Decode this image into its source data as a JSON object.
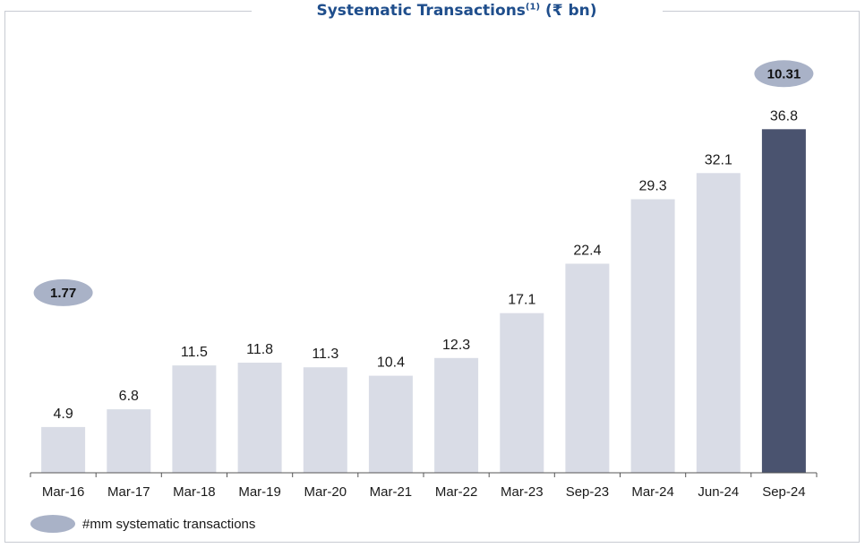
{
  "chart_data": {
    "type": "bar",
    "title": "Systematic Transactions",
    "title_superscript": "(1)",
    "title_unit": "(₹ bn)",
    "categories": [
      "Mar-16",
      "Mar-17",
      "Mar-18",
      "Mar-19",
      "Mar-20",
      "Mar-21",
      "Mar-22",
      "Mar-23",
      "Sep-23",
      "Mar-24",
      "Jun-24",
      "Sep-24"
    ],
    "values": [
      4.9,
      6.8,
      11.5,
      11.8,
      11.3,
      10.4,
      12.3,
      17.1,
      22.4,
      29.3,
      32.1,
      36.8
    ],
    "data_labels": [
      "4.9",
      "6.8",
      "11.5",
      "11.8",
      "11.3",
      "10.4",
      "12.3",
      "17.1",
      "22.4",
      "29.3",
      "32.1",
      "36.8"
    ],
    "ylim": [
      0,
      47
    ],
    "highlight_index": 11,
    "colors": {
      "bar": "#d9dce6",
      "highlight": "#4a536f",
      "bubble": "#a9b2c7",
      "title": "#1f4e8c"
    },
    "bubbles": [
      {
        "category": "Mar-16",
        "label": "1.77"
      },
      {
        "category": "Sep-24",
        "label": "10.31"
      }
    ],
    "legend": {
      "label": "#mm systematic transactions",
      "position": "bottom-left"
    },
    "grid": false
  }
}
